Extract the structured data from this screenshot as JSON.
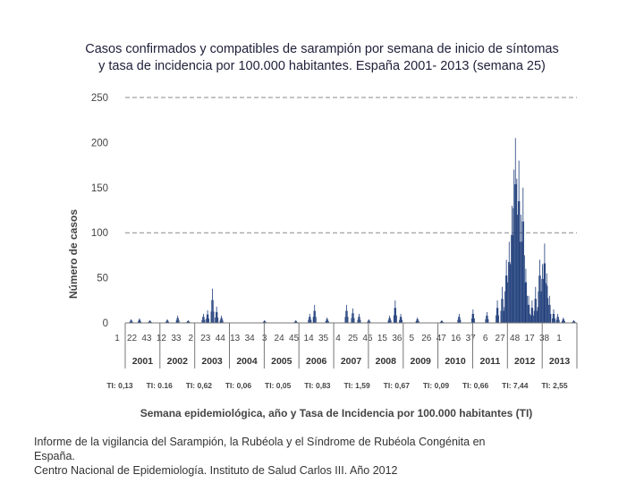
{
  "chart_data": {
    "type": "bar",
    "title_line1": "Casos confirmados y compatibles de sarampión por semana de inicio de síntomas",
    "title_line2": "y tasa de incidencia por 100.000 habitantes. España 2001- 2013 (semana 25)",
    "xlabel": "Semana epidemiológica, año y Tasa de Incidencia por 100.000 habitantes (TI)",
    "ylabel": "Número de casos",
    "ylim": [
      0,
      250
    ],
    "yticks": [
      0,
      50,
      100,
      150,
      200,
      250
    ],
    "gridlines": [
      100,
      250
    ],
    "week_labels": [
      "1",
      "22",
      "43",
      "12",
      "33",
      "2",
      "23",
      "44",
      "13",
      "34",
      "3",
      "24",
      "45",
      "14",
      "35",
      "4",
      "25",
      "46",
      "15",
      "36",
      "5",
      "26",
      "47",
      "16",
      "37",
      "6",
      "27",
      "48",
      "17",
      "38",
      "1"
    ],
    "years": [
      "2001",
      "2002",
      "2003",
      "2004",
      "2005",
      "2006",
      "2007",
      "2008",
      "2009",
      "2010",
      "2011",
      "2012",
      "2013"
    ],
    "incidence_rates": [
      "TI: 0,13",
      "TI: 0.16",
      "TI: 0,62",
      "TI: 0,06",
      "TI: 0,05",
      "TI: 0,83",
      "TI: 1,59",
      "TI: 0,67",
      "TI: 0,09",
      "TI: 0,66",
      "TI: 7,44",
      "TI: 2,55"
    ],
    "series": [
      {
        "name": "Casos",
        "color": "#1f3d7a",
        "peaks": [
          {
            "week": 8,
            "value": 4
          },
          {
            "week": 20,
            "value": 5
          },
          {
            "week": 35,
            "value": 3
          },
          {
            "week": 60,
            "value": 4
          },
          {
            "week": 75,
            "value": 8
          },
          {
            "week": 90,
            "value": 3
          },
          {
            "week": 112,
            "value": 10
          },
          {
            "week": 118,
            "value": 14
          },
          {
            "week": 125,
            "value": 38
          },
          {
            "week": 131,
            "value": 18
          },
          {
            "week": 138,
            "value": 8
          },
          {
            "week": 200,
            "value": 3
          },
          {
            "week": 245,
            "value": 3
          },
          {
            "week": 265,
            "value": 10
          },
          {
            "week": 272,
            "value": 20
          },
          {
            "week": 290,
            "value": 6
          },
          {
            "week": 318,
            "value": 20
          },
          {
            "week": 327,
            "value": 16
          },
          {
            "week": 336,
            "value": 10
          },
          {
            "week": 350,
            "value": 4
          },
          {
            "week": 380,
            "value": 8
          },
          {
            "week": 388,
            "value": 25
          },
          {
            "week": 396,
            "value": 10
          },
          {
            "week": 420,
            "value": 6
          },
          {
            "week": 455,
            "value": 3
          },
          {
            "week": 480,
            "value": 10
          },
          {
            "week": 500,
            "value": 15
          },
          {
            "week": 520,
            "value": 12
          },
          {
            "week": 535,
            "value": 25
          },
          {
            "week": 542,
            "value": 40
          },
          {
            "week": 548,
            "value": 70
          },
          {
            "week": 552,
            "value": 90
          },
          {
            "week": 556,
            "value": 130
          },
          {
            "week": 559,
            "value": 170
          },
          {
            "week": 561,
            "value": 205
          },
          {
            "week": 563,
            "value": 160
          },
          {
            "week": 566,
            "value": 180
          },
          {
            "week": 569,
            "value": 120
          },
          {
            "week": 572,
            "value": 150
          },
          {
            "week": 576,
            "value": 60
          },
          {
            "week": 580,
            "value": 30
          },
          {
            "week": 585,
            "value": 25
          },
          {
            "week": 590,
            "value": 40
          },
          {
            "week": 596,
            "value": 70
          },
          {
            "week": 600,
            "value": 65
          },
          {
            "week": 603,
            "value": 88
          },
          {
            "week": 606,
            "value": 55
          },
          {
            "week": 610,
            "value": 30
          },
          {
            "week": 616,
            "value": 15
          },
          {
            "week": 622,
            "value": 10
          },
          {
            "week": 630,
            "value": 6
          },
          {
            "week": 645,
            "value": 3
          }
        ]
      }
    ]
  },
  "footer": {
    "line1": "Informe de la vigilancia del Sarampión, la Rubéola y el Síndrome de Rubéola Congénita en",
    "line2": "España.",
    "line3": "Centro Nacional de Epidemiología. Instituto de Salud Carlos III. Año 2012"
  }
}
